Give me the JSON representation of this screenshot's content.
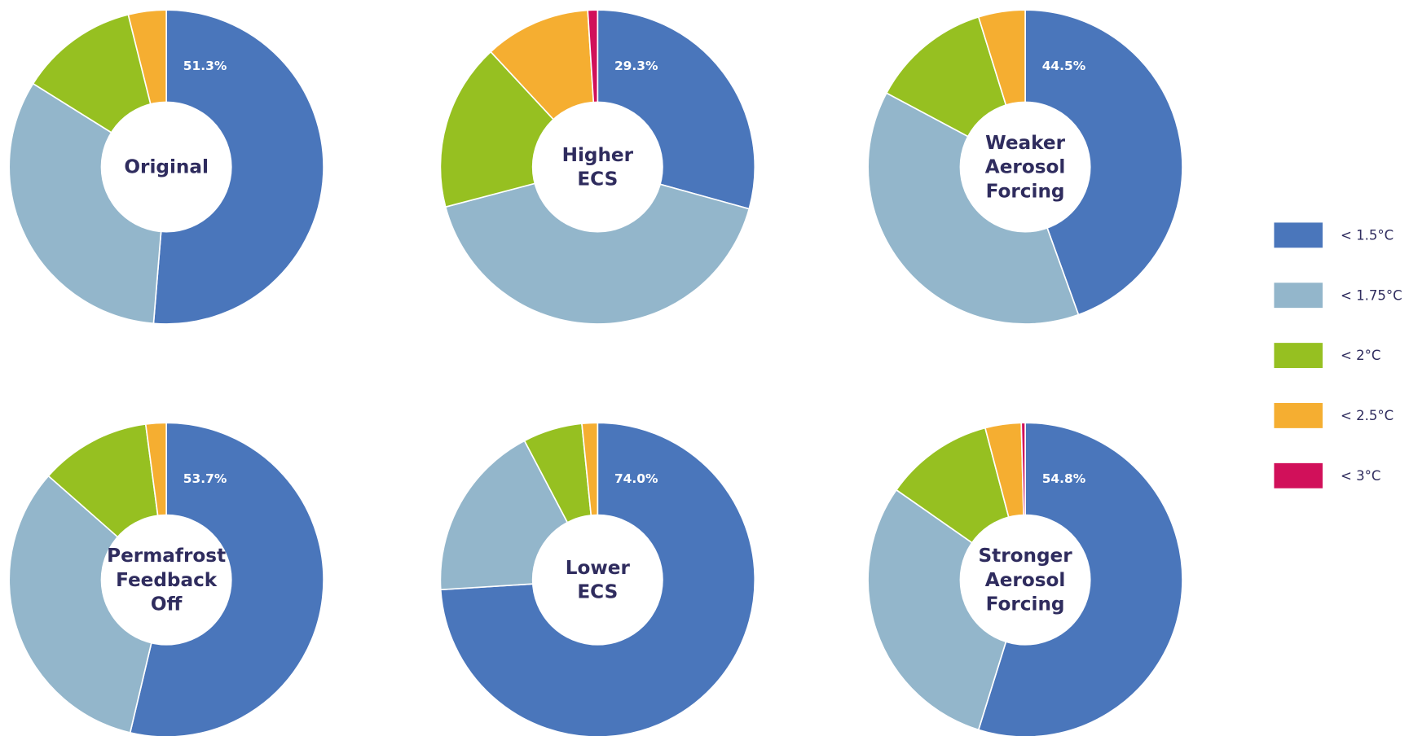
{
  "legend": {
    "categories": [
      "< 1.5°C",
      "< 1.75°C",
      "< 2°C",
      "< 2.5°C",
      "< 3°C"
    ],
    "colors": [
      "#4a76bb",
      "#93b6cb",
      "#96c021",
      "#f5ae31",
      "#d1105a"
    ]
  },
  "chart_data": [
    {
      "type": "pie",
      "title": [
        "Original"
      ],
      "values": [
        51.3,
        32.6,
        12.2,
        3.9
      ],
      "value_labels": [
        "51.3%",
        null,
        null,
        null
      ]
    },
    {
      "type": "pie",
      "title": [
        "Higher",
        "ECS"
      ],
      "values": [
        29.3,
        41.6,
        17.2,
        10.9,
        1.0
      ],
      "value_labels": [
        "29.3%",
        null,
        null,
        null,
        null
      ]
    },
    {
      "type": "pie",
      "title": [
        "Weaker",
        "Aerosol",
        "Forcing"
      ],
      "values": [
        44.5,
        38.3,
        12.4,
        4.8
      ],
      "value_labels": [
        "44.5%",
        null,
        null,
        null
      ]
    },
    {
      "type": "pie",
      "title": [
        "Permafrost",
        "Feedback",
        "Off"
      ],
      "values": [
        53.7,
        32.8,
        11.4,
        2.1
      ],
      "value_labels": [
        "53.7%",
        null,
        null,
        null
      ]
    },
    {
      "type": "pie",
      "title": [
        "Lower",
        "ECS"
      ],
      "values": [
        74.0,
        18.3,
        6.1,
        1.6
      ],
      "value_labels": [
        "74.0%",
        null,
        null,
        null
      ]
    },
    {
      "type": "pie",
      "title": [
        "Stronger",
        "Aerosol",
        "Forcing"
      ],
      "values": [
        54.8,
        29.9,
        11.2,
        3.7,
        0.4
      ],
      "value_labels": [
        "54.8%",
        null,
        null,
        null,
        null
      ]
    }
  ]
}
